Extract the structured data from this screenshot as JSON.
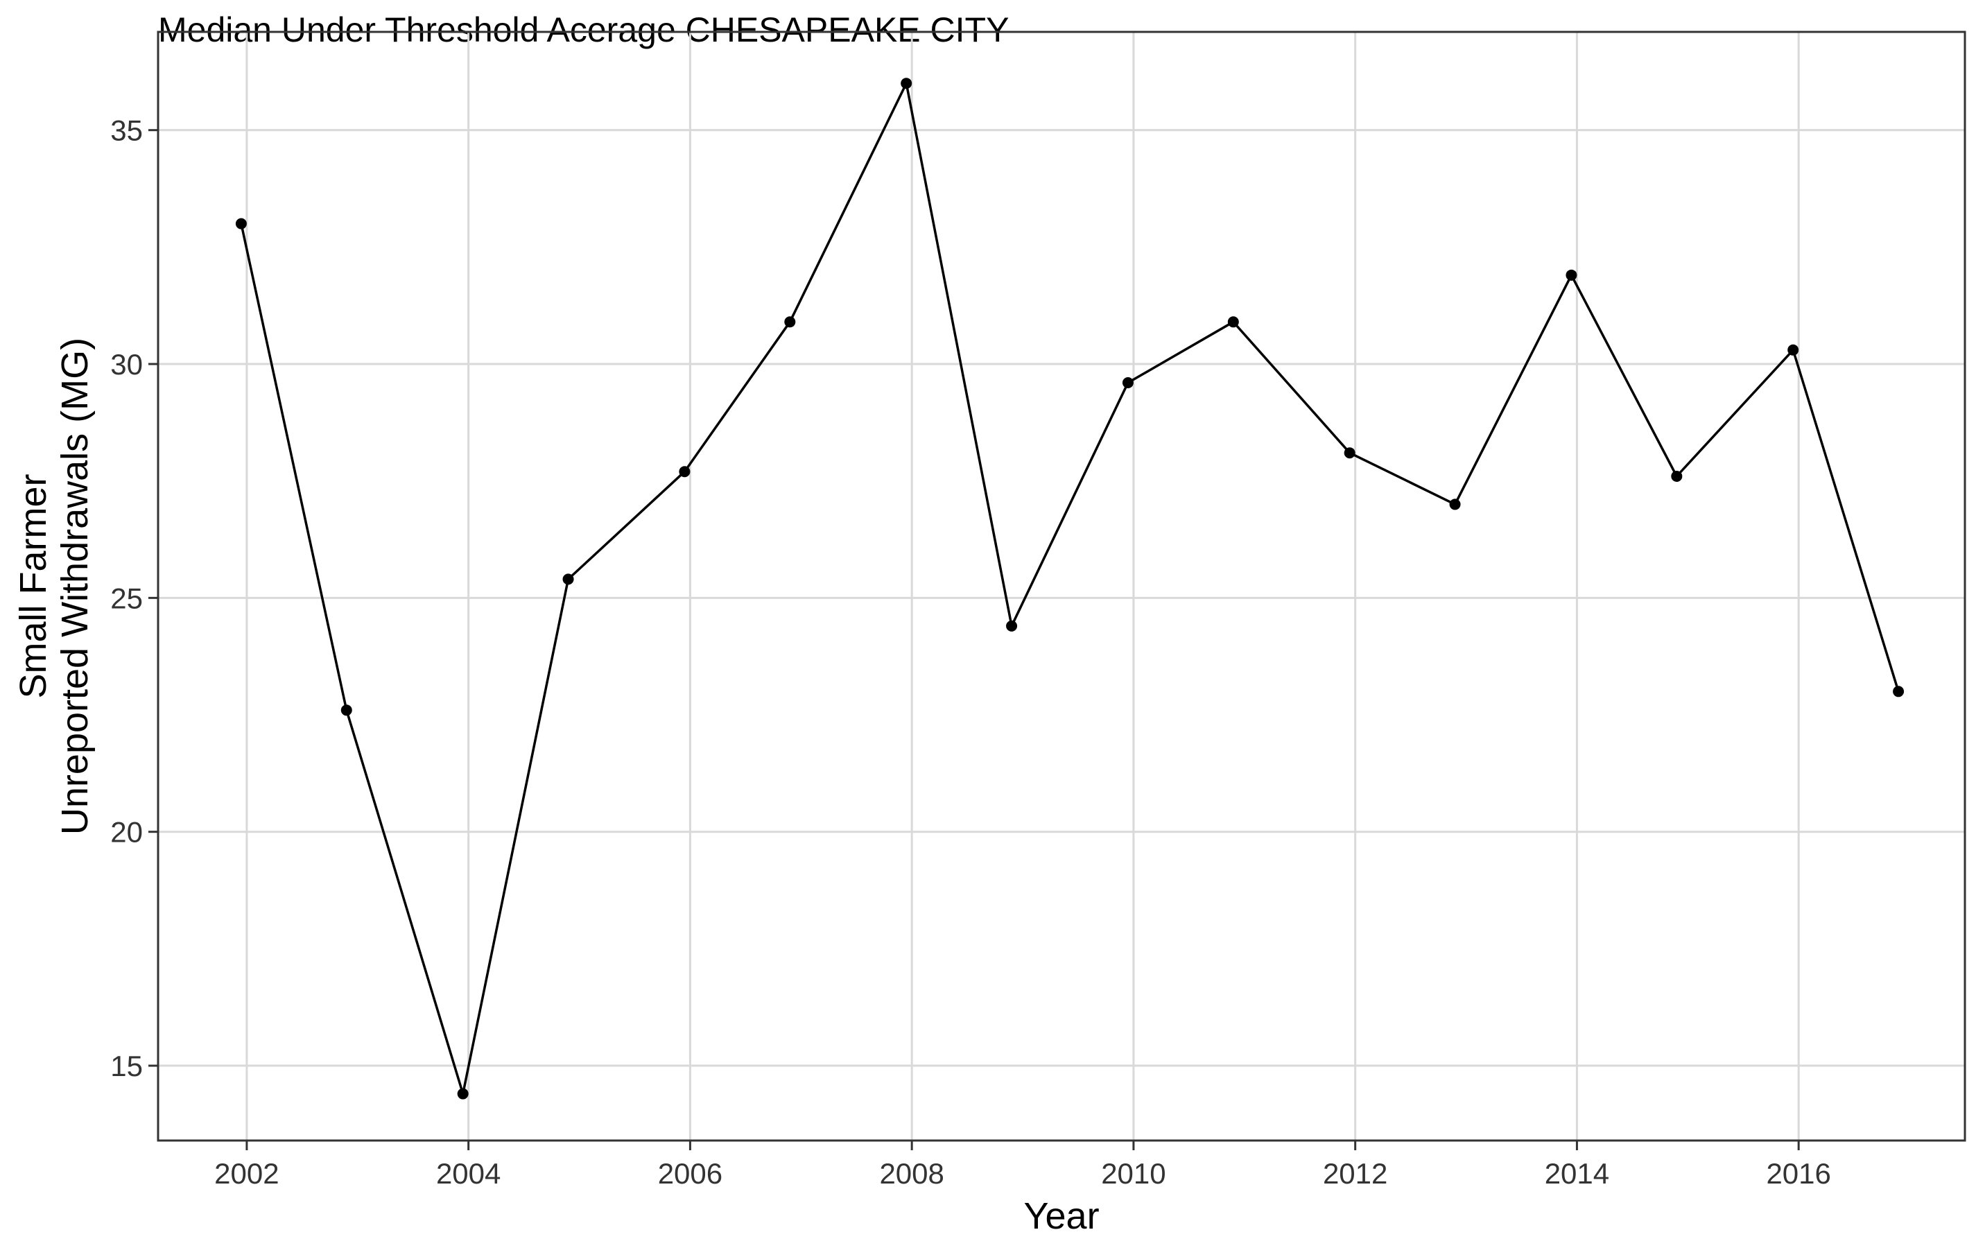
{
  "chart_data": {
    "type": "line",
    "title": "Median Under Threshold Acerage CHESAPEAKE CITY",
    "xlabel": "Year",
    "ylabel_lines": [
      "Small Farmer",
      "Unreported Withdrawals (MG)"
    ],
    "x": [
      2001.95,
      2002.9,
      2003.95,
      2004.9,
      2005.95,
      2006.9,
      2007.95,
      2008.9,
      2009.95,
      2010.9,
      2011.95,
      2012.9,
      2013.95,
      2014.9,
      2015.95,
      2016.9
    ],
    "y": [
      33.0,
      22.6,
      14.4,
      25.4,
      27.7,
      30.9,
      36.0,
      24.4,
      29.6,
      30.9,
      28.1,
      27.0,
      31.9,
      27.6,
      30.3,
      23.0
    ],
    "xlim": [
      2001.2,
      2017.5
    ],
    "ylim": [
      13.4,
      37.1
    ],
    "xticks": [
      2002,
      2004,
      2006,
      2008,
      2010,
      2012,
      2014,
      2016
    ],
    "xtick_labels": [
      "2002",
      "2004",
      "2006",
      "2008",
      "2010",
      "2012",
      "2014",
      "2016"
    ],
    "yticks": [
      15,
      20,
      25,
      30,
      35
    ],
    "ytick_labels": [
      "15",
      "20",
      "25",
      "30",
      "35"
    ],
    "grid": true,
    "legend": "none",
    "line_color": "#000000",
    "grid_color": "#d9d9d9"
  }
}
